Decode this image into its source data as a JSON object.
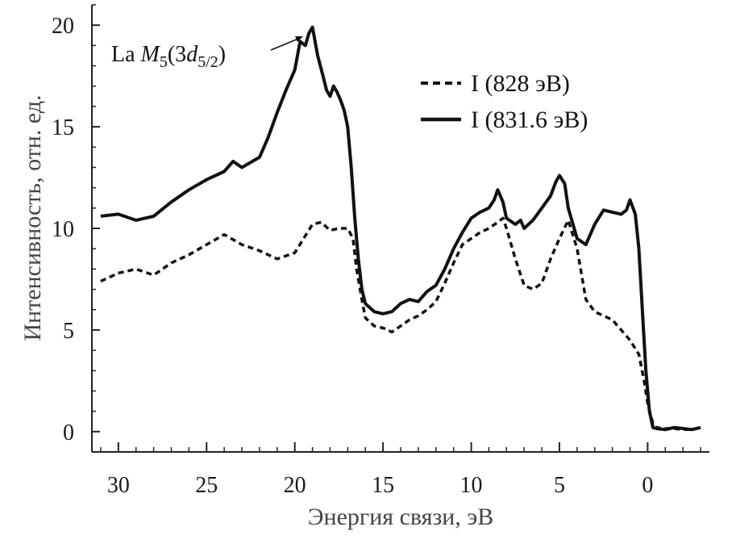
{
  "chart_data": {
    "type": "line",
    "xlabel": "Энергия связи, эВ",
    "ylabel": "Интенсивность, отн. ед.",
    "xlim": [
      31.5,
      -3.5
    ],
    "ylim": [
      -1,
      21
    ],
    "x_reversed": true,
    "x_ticks": [
      "30",
      "25",
      "20",
      "15",
      "10",
      "5",
      "0"
    ],
    "x_tick_values": [
      30,
      25,
      20,
      15,
      10,
      5,
      0
    ],
    "y_ticks": [
      "0",
      "5",
      "10",
      "15",
      "20"
    ],
    "y_tick_values": [
      0,
      5,
      10,
      15,
      20
    ],
    "legend_position": "top-right",
    "annotation": {
      "prefix": "La ",
      "symbol": "M",
      "sub1": "5",
      "paren_open": "(3",
      "d": "d",
      "sub2": "5/2",
      "paren_close": ")",
      "x": 19.3,
      "y": 20
    },
    "series": [
      {
        "name": "I (828 эВ)",
        "style": "dashed",
        "color": "#111111",
        "x": [
          31,
          30,
          29,
          28,
          27,
          26,
          25,
          24,
          23,
          22,
          21,
          20,
          19.5,
          19,
          18.5,
          18,
          17.5,
          17,
          16.7,
          16.5,
          16.2,
          16,
          15.5,
          15,
          14.5,
          14,
          13.5,
          13,
          12.5,
          12,
          11.5,
          11,
          10.5,
          10,
          9.5,
          9,
          8.5,
          8.2,
          8,
          7.5,
          7,
          6.5,
          6,
          5.5,
          5,
          4.5,
          4,
          3.5,
          3,
          2.5,
          2,
          1.5,
          1,
          0.5,
          0.2,
          0,
          -0.3,
          -0.5,
          -1,
          -1.5,
          -2,
          -2.5,
          -3
        ],
        "y": [
          7.4,
          7.8,
          8.0,
          7.7,
          8.3,
          8.7,
          9.2,
          9.7,
          9.2,
          8.9,
          8.5,
          8.8,
          9.5,
          10.2,
          10.3,
          9.9,
          10.0,
          10.0,
          9.5,
          8.0,
          6.5,
          5.6,
          5.2,
          5.1,
          4.9,
          5.2,
          5.5,
          5.7,
          6.0,
          6.4,
          7.3,
          8.3,
          9.2,
          9.5,
          9.8,
          10.0,
          10.3,
          10.5,
          10.0,
          8.5,
          7.2,
          7.0,
          7.3,
          8.5,
          9.5,
          10.4,
          9.0,
          6.5,
          5.9,
          5.7,
          5.5,
          5.0,
          4.5,
          3.8,
          2.5,
          1.4,
          0.4,
          0.2,
          0.15,
          0.15,
          0.1,
          0.1,
          0.2
        ]
      },
      {
        "name": "I (831.6 эВ)",
        "style": "solid",
        "color": "#111111",
        "x": [
          31,
          30,
          29,
          28,
          27,
          26,
          25,
          24,
          23.5,
          23,
          22,
          21.5,
          21,
          20.5,
          20,
          19.7,
          19.4,
          19.2,
          19,
          18.7,
          18.4,
          18.2,
          18,
          17.8,
          17.6,
          17.4,
          17.2,
          17,
          16.8,
          16.6,
          16.4,
          16.2,
          16,
          15.5,
          15,
          14.5,
          14,
          13.5,
          13,
          12.5,
          12,
          11.5,
          11,
          10.5,
          10,
          9.5,
          9,
          8.7,
          8.5,
          8.2,
          8,
          7.5,
          7.2,
          7,
          6.5,
          6,
          5.5,
          5.2,
          5,
          4.7,
          4.5,
          4,
          3.5,
          3,
          2.5,
          2,
          1.5,
          1.2,
          1,
          0.7,
          0.5,
          0.3,
          0.1,
          -0.1,
          -0.3,
          -0.5,
          -1,
          -1.5,
          -2,
          -2.5,
          -3
        ],
        "y": [
          10.6,
          10.7,
          10.4,
          10.6,
          11.3,
          11.9,
          12.4,
          12.8,
          13.3,
          13.0,
          13.5,
          14.5,
          15.7,
          16.8,
          17.8,
          19.2,
          19.0,
          19.6,
          19.9,
          18.5,
          17.5,
          16.8,
          16.5,
          17.0,
          16.7,
          16.3,
          15.8,
          15.0,
          13.0,
          10.5,
          8.5,
          7.0,
          6.3,
          5.9,
          5.8,
          5.9,
          6.3,
          6.5,
          6.4,
          6.9,
          7.2,
          8.0,
          9.0,
          9.8,
          10.5,
          10.8,
          11.0,
          11.4,
          11.9,
          11.3,
          10.5,
          10.2,
          10.4,
          10.0,
          10.4,
          11.0,
          11.6,
          12.3,
          12.6,
          12.2,
          11.0,
          9.5,
          9.2,
          10.2,
          10.9,
          10.8,
          10.7,
          10.9,
          11.4,
          10.7,
          9.0,
          6.0,
          3.0,
          1.0,
          0.2,
          0.15,
          0.1,
          0.2,
          0.15,
          0.1,
          0.2
        ]
      }
    ]
  }
}
